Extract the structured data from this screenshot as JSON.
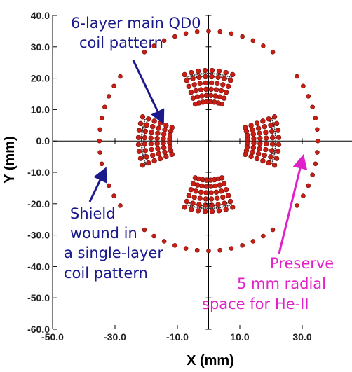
{
  "chart_data": {
    "type": "scatter",
    "title": "",
    "xlabel": "X (mm)",
    "ylabel": "Y (mm)",
    "xlim": [
      -50,
      50
    ],
    "ylim": [
      -60,
      40
    ],
    "x_ticks": [
      "-50.0",
      "-30.0",
      "-10.0",
      "10.0",
      "30.0"
    ],
    "x_tick_values": [
      -50,
      -30,
      -10,
      10,
      30
    ],
    "y_ticks": [
      "40.0",
      "30.0",
      "20.0",
      "10.0",
      "0.0",
      "-10.0",
      "-20.0",
      "-30.0",
      "-40.0",
      "-50.0",
      "-60.0"
    ],
    "y_tick_values": [
      40,
      30,
      20,
      10,
      0,
      -10,
      -20,
      -30,
      -40,
      -50,
      -60
    ],
    "grid": false,
    "axes_through_origin": true,
    "colors": {
      "conductor": "#c81e14",
      "conductor_edge": "#6e0c08",
      "axis": "#000000",
      "blue_text": "#1a1a8c",
      "pink_text": "#e020c8"
    },
    "series": [
      {
        "kind": "main_coil_blocks",
        "layers": 6,
        "radius_start_mm": 12.5,
        "radius_step_mm": 2.0,
        "strands_per_layer": 8,
        "half_angle_deg": 20,
        "block_center_angles_deg": [
          0,
          90,
          180,
          270
        ]
      },
      {
        "kind": "inner_ring_dots",
        "radius_mm": 21.5,
        "gap_half_angle_deg": 25,
        "gap_center_angles_deg": [
          45,
          135,
          225,
          315
        ]
      },
      {
        "kind": "shield_coil",
        "radius_mm": 35.0,
        "strands_per_arc": 13,
        "half_angle_deg": 36,
        "arc_center_angles_deg": [
          0,
          90,
          180,
          270
        ]
      }
    ],
    "annotations": [
      {
        "lines": [
          "6-layer main QD0",
          "coil pattern"
        ],
        "color": "blue",
        "arrow_to": [
          -17,
          8
        ]
      },
      {
        "lines": [
          "Shield",
          "wound in",
          "a single-layer",
          "coil pattern"
        ],
        "color": "blue",
        "arrow_to": [
          -33,
          -7
        ]
      },
      {
        "lines": [
          "Preserve",
          "5 mm radial",
          "space for He-II"
        ],
        "color": "pink",
        "arrow_to": [
          26,
          4
        ]
      }
    ]
  }
}
